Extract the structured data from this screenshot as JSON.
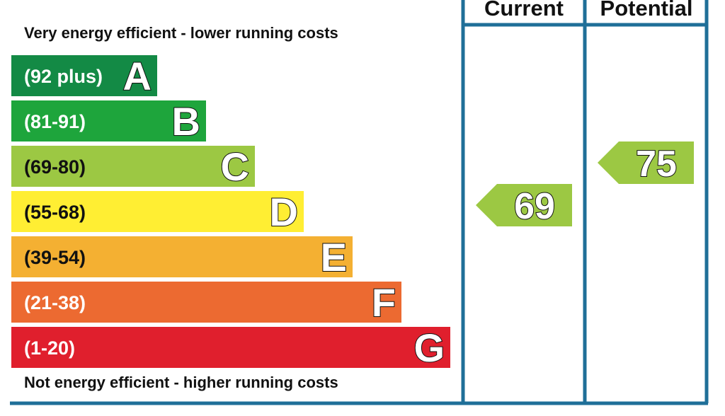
{
  "chart_data": {
    "type": "bar",
    "top_note": "Very energy efficient - lower running costs",
    "bottom_note": "Not energy efficient - higher running costs",
    "columns": {
      "current": "Current",
      "potential": "Potential"
    },
    "bands": [
      {
        "letter": "A",
        "range": "(92 plus)",
        "min": 92,
        "max": 100,
        "color": "#138a45"
      },
      {
        "letter": "B",
        "range": "(81-91)",
        "min": 81,
        "max": 91,
        "color": "#1ea53c"
      },
      {
        "letter": "C",
        "range": "(69-80)",
        "min": 69,
        "max": 80,
        "color": "#9cc843"
      },
      {
        "letter": "D",
        "range": "(55-68)",
        "min": 55,
        "max": 68,
        "color": "#ffee33"
      },
      {
        "letter": "E",
        "range": "(39-54)",
        "min": 39,
        "max": 54,
        "color": "#f4b032"
      },
      {
        "letter": "F",
        "range": "(21-38)",
        "min": 21,
        "max": 38,
        "color": "#ec6a31"
      },
      {
        "letter": "G",
        "range": "(1-20)",
        "min": 1,
        "max": 20,
        "color": "#e01f2d"
      }
    ],
    "current": {
      "value": 69,
      "band": "C",
      "color": "#9cc843"
    },
    "potential": {
      "value": 75,
      "band": "C",
      "color": "#9cc843"
    },
    "frame_color": "#1f6f98"
  }
}
